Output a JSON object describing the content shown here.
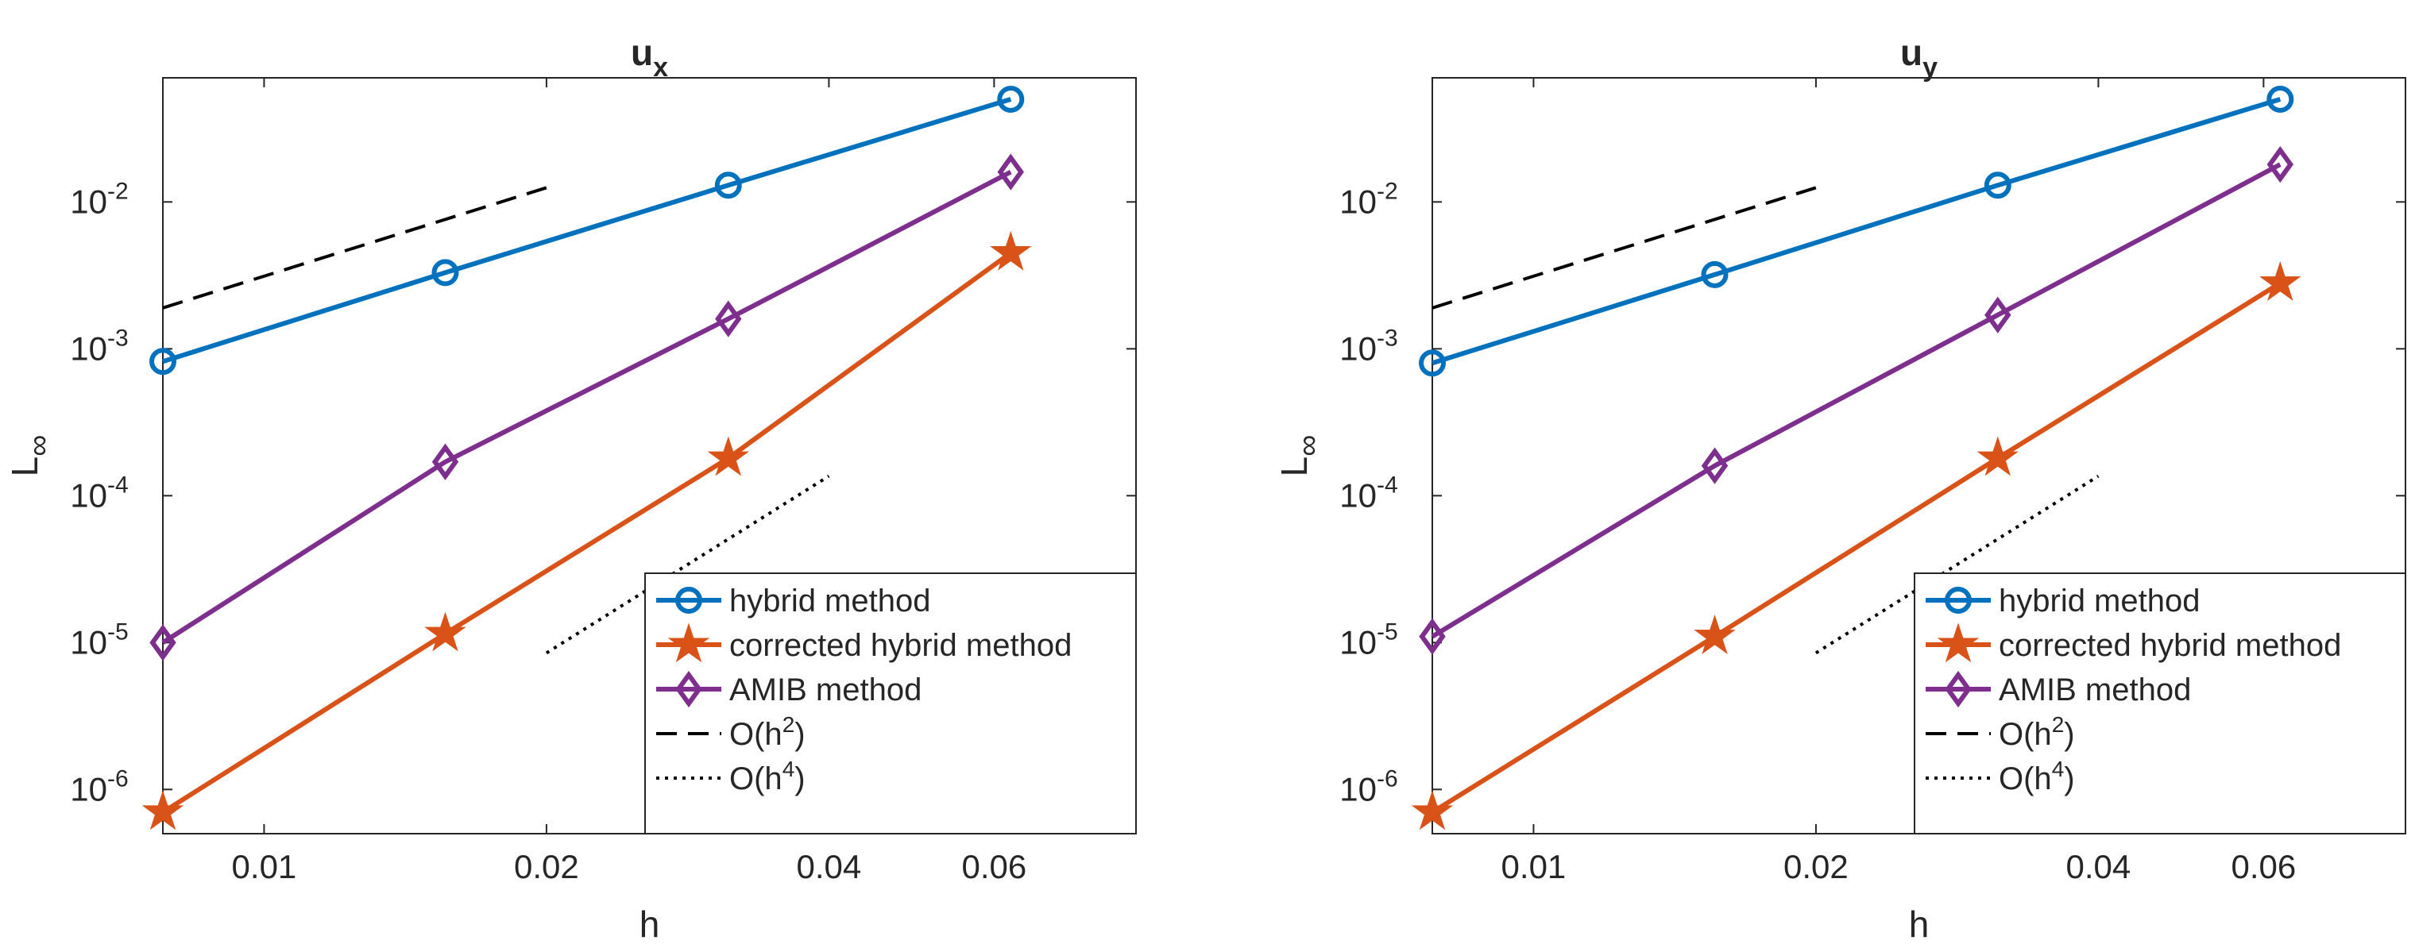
{
  "chart_data": [
    {
      "type": "line",
      "title": "u",
      "title_subscript": "x",
      "xlabel": "h",
      "ylabel": "L",
      "ylabel_subscript": "∞",
      "xscale": "log",
      "yscale": "log",
      "xlim": [
        0.0078,
        0.085
      ],
      "ylim": [
        5e-07,
        0.07
      ],
      "xticks": [
        {
          "value": 0.01,
          "label": "0.01"
        },
        {
          "value": 0.02,
          "label": "0.02"
        },
        {
          "value": 0.04,
          "label": "0.04"
        },
        {
          "value": 0.06,
          "label": "0.06"
        }
      ],
      "yticks": [
        {
          "value": 1e-06,
          "base": "10",
          "exp": "-6"
        },
        {
          "value": 1e-05,
          "base": "10",
          "exp": "-5"
        },
        {
          "value": 0.0001,
          "base": "10",
          "exp": "-4"
        },
        {
          "value": 0.001,
          "base": "10",
          "exp": "-3"
        },
        {
          "value": 0.01,
          "base": "10",
          "exp": "-2"
        }
      ],
      "grid": false,
      "legend_position": "bottom-right",
      "series": [
        {
          "name": "hybrid method",
          "color": "#0072BD",
          "marker": "circle",
          "line": "solid",
          "x": [
            0.0078,
            0.0156,
            0.03125,
            0.0625
          ],
          "y": [
            0.00082,
            0.0033,
            0.013,
            0.05
          ]
        },
        {
          "name": "corrected hybrid method",
          "color": "#D95319",
          "marker": "star",
          "line": "solid",
          "x": [
            0.0078,
            0.0156,
            0.03125,
            0.0625
          ],
          "y": [
            7e-07,
            1.15e-05,
            0.00018,
            0.0045
          ]
        },
        {
          "name": "AMIB method",
          "color": "#7E2F8E",
          "marker": "diamond",
          "line": "solid",
          "x": [
            0.0078,
            0.0156,
            0.03125,
            0.0625
          ],
          "y": [
            1e-05,
            0.00017,
            0.0016,
            0.016
          ]
        },
        {
          "name": "O(h",
          "name_exp": "2",
          "name_suffix": ")",
          "color": "#000000",
          "marker": "none",
          "line": "dashed",
          "x": [
            0.0078,
            0.02
          ],
          "y": [
            0.0019,
            0.0125
          ]
        },
        {
          "name": "O(h",
          "name_exp": "4",
          "name_suffix": ")",
          "color": "#000000",
          "marker": "none",
          "line": "dotted",
          "x": [
            0.02,
            0.04
          ],
          "y": [
            8.5e-06,
            0.000136
          ]
        }
      ]
    },
    {
      "type": "line",
      "title": "u",
      "title_subscript": "y",
      "xlabel": "h",
      "ylabel": "L",
      "ylabel_subscript": "∞",
      "xscale": "log",
      "yscale": "log",
      "xlim": [
        0.0078,
        0.085
      ],
      "ylim": [
        5e-07,
        0.07
      ],
      "xticks": [
        {
          "value": 0.01,
          "label": "0.01"
        },
        {
          "value": 0.02,
          "label": "0.02"
        },
        {
          "value": 0.04,
          "label": "0.04"
        },
        {
          "value": 0.06,
          "label": "0.06"
        }
      ],
      "yticks": [
        {
          "value": 1e-06,
          "base": "10",
          "exp": "-6"
        },
        {
          "value": 1e-05,
          "base": "10",
          "exp": "-5"
        },
        {
          "value": 0.0001,
          "base": "10",
          "exp": "-4"
        },
        {
          "value": 0.001,
          "base": "10",
          "exp": "-3"
        },
        {
          "value": 0.01,
          "base": "10",
          "exp": "-2"
        }
      ],
      "grid": false,
      "legend_position": "bottom-right",
      "series": [
        {
          "name": "hybrid method",
          "color": "#0072BD",
          "marker": "circle",
          "line": "solid",
          "x": [
            0.0078,
            0.0156,
            0.03125,
            0.0625
          ],
          "y": [
            0.0008,
            0.0032,
            0.013,
            0.05
          ]
        },
        {
          "name": "corrected hybrid method",
          "color": "#D95319",
          "marker": "star",
          "line": "solid",
          "x": [
            0.0078,
            0.0156,
            0.03125,
            0.0625
          ],
          "y": [
            7e-07,
            1.1e-05,
            0.00018,
            0.0028
          ]
        },
        {
          "name": "AMIB method",
          "color": "#7E2F8E",
          "marker": "diamond",
          "line": "solid",
          "x": [
            0.0078,
            0.0156,
            0.03125,
            0.0625
          ],
          "y": [
            1.1e-05,
            0.00016,
            0.0017,
            0.018
          ]
        },
        {
          "name": "O(h",
          "name_exp": "2",
          "name_suffix": ")",
          "color": "#000000",
          "marker": "none",
          "line": "dashed",
          "x": [
            0.0078,
            0.02
          ],
          "y": [
            0.0019,
            0.0125
          ]
        },
        {
          "name": "O(h",
          "name_exp": "4",
          "name_suffix": ")",
          "color": "#000000",
          "marker": "none",
          "line": "dotted",
          "x": [
            0.02,
            0.04
          ],
          "y": [
            8.5e-06,
            0.000136
          ]
        }
      ]
    }
  ]
}
